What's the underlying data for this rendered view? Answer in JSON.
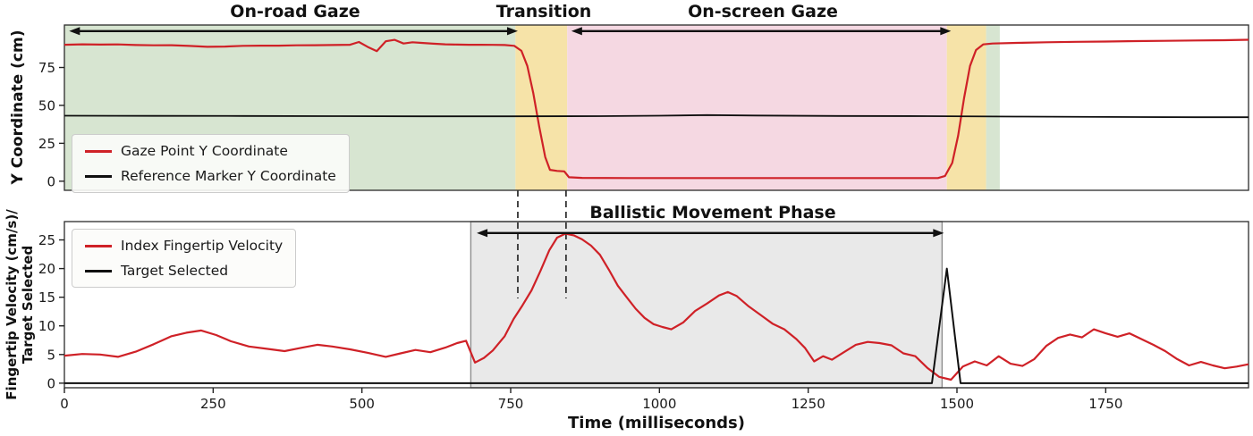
{
  "figure": {
    "background": "#ffffff"
  },
  "colors": {
    "red_line": "#cf2127",
    "black_line": "#0f0f0f",
    "green_region": "#d7e5d1",
    "yellow_region": "#f6e3a8",
    "pink_region": "#f5d8e2",
    "gray_region": "#e9e9e9"
  },
  "chart_data": [
    {
      "type": "line",
      "title": "",
      "ylabel": "Y Coordinate (cm)",
      "xlim": [
        0,
        1990
      ],
      "ylim": [
        -6,
        103
      ],
      "yticks": [
        0,
        25,
        50,
        75
      ],
      "grid": false,
      "legend_position": "center-left",
      "regions": [
        {
          "name": "on-road-green",
          "x0": 0,
          "x1": 758,
          "color": "#d7e5d1"
        },
        {
          "name": "transition-yellow-1",
          "x0": 758,
          "x1": 845,
          "color": "#f6e3a8"
        },
        {
          "name": "on-screen-pink",
          "x0": 845,
          "x1": 1483,
          "color": "#f5d8e2"
        },
        {
          "name": "transition-yellow-2",
          "x0": 1483,
          "x1": 1549,
          "color": "#f6e3a8"
        },
        {
          "name": "post-green",
          "x0": 1549,
          "x1": 1572,
          "color": "#d7e5d1"
        }
      ],
      "annotations": [
        {
          "label": "On-road Gaze",
          "arrow": [
            8,
            762
          ],
          "arrow_y": 99
        },
        {
          "label": "Transition",
          "arrow": null
        },
        {
          "label": "On-screen Gaze",
          "arrow": [
            852,
            1490
          ],
          "arrow_y": 99
        }
      ],
      "legend": {
        "items": [
          {
            "label": "Gaze Point Y Coordinate",
            "color": "#cf2127"
          },
          {
            "label": "Reference Marker Y Coordinate",
            "color": "#0f0f0f"
          }
        ]
      },
      "series": [
        {
          "name": "Gaze Point Y Coordinate",
          "color": "#cf2127",
          "width": 2.2,
          "points": [
            [
              0,
              90
            ],
            [
              30,
              90.3
            ],
            [
              60,
              90.1
            ],
            [
              90,
              90.2
            ],
            [
              120,
              89.8
            ],
            [
              150,
              89.6
            ],
            [
              180,
              89.7
            ],
            [
              210,
              89.2
            ],
            [
              240,
              88.6
            ],
            [
              270,
              88.8
            ],
            [
              300,
              89.3
            ],
            [
              330,
              89.4
            ],
            [
              360,
              89.4
            ],
            [
              390,
              89.6
            ],
            [
              420,
              89.7
            ],
            [
              450,
              89.8
            ],
            [
              480,
              90
            ],
            [
              495,
              91.8
            ],
            [
              510,
              88.5
            ],
            [
              525,
              85.8
            ],
            [
              540,
              92.3
            ],
            [
              555,
              93.2
            ],
            [
              570,
              90.8
            ],
            [
              585,
              91.6
            ],
            [
              600,
              91.2
            ],
            [
              620,
              90.7
            ],
            [
              640,
              90.3
            ],
            [
              660,
              90.1
            ],
            [
              680,
              90
            ],
            [
              700,
              90
            ],
            [
              720,
              89.9
            ],
            [
              740,
              89.8
            ],
            [
              756,
              89.3
            ],
            [
              768,
              86
            ],
            [
              778,
              76
            ],
            [
              788,
              58
            ],
            [
              798,
              36
            ],
            [
              808,
              16
            ],
            [
              816,
              7.5
            ],
            [
              828,
              6.8
            ],
            [
              840,
              6.5
            ],
            [
              848,
              2.6
            ],
            [
              870,
              2.2
            ],
            [
              950,
              2.1
            ],
            [
              1050,
              2.1
            ],
            [
              1150,
              2.1
            ],
            [
              1250,
              2.1
            ],
            [
              1350,
              2.1
            ],
            [
              1430,
              2.1
            ],
            [
              1468,
              2.1
            ],
            [
              1480,
              3.5
            ],
            [
              1492,
              12
            ],
            [
              1502,
              30
            ],
            [
              1512,
              55
            ],
            [
              1522,
              76
            ],
            [
              1532,
              86.5
            ],
            [
              1544,
              90.2
            ],
            [
              1560,
              90.8
            ],
            [
              1600,
              91.2
            ],
            [
              1650,
              91.6
            ],
            [
              1700,
              91.9
            ],
            [
              1750,
              92.1
            ],
            [
              1800,
              92.4
            ],
            [
              1850,
              92.6
            ],
            [
              1900,
              92.8
            ],
            [
              1950,
              93
            ],
            [
              1990,
              93.3
            ]
          ]
        },
        {
          "name": "Reference Marker Y Coordinate",
          "color": "#0f0f0f",
          "width": 1.8,
          "points": [
            [
              0,
              43.2
            ],
            [
              150,
              43.1
            ],
            [
              300,
              43
            ],
            [
              450,
              42.9
            ],
            [
              600,
              42.8
            ],
            [
              750,
              42.8
            ],
            [
              900,
              42.9
            ],
            [
              1000,
              43.2
            ],
            [
              1080,
              43.6
            ],
            [
              1160,
              43.3
            ],
            [
              1300,
              43
            ],
            [
              1450,
              42.9
            ],
            [
              1600,
              42.6
            ],
            [
              1750,
              42.4
            ],
            [
              1900,
              42.2
            ],
            [
              1990,
              42.2
            ]
          ]
        }
      ]
    },
    {
      "type": "line",
      "title": "",
      "ylabel_lines": [
        "Fingertip Velocity (cm/s)/",
        "Target Selected"
      ],
      "xlabel": "Time (milliseconds)",
      "xlim": [
        0,
        1990
      ],
      "ylim": [
        -0.8,
        28.2
      ],
      "yticks": [
        0,
        5,
        10,
        15,
        20,
        25
      ],
      "xticks": [
        0,
        250,
        500,
        750,
        1000,
        1250,
        1500,
        1750
      ],
      "grid": false,
      "legend_position": "top-left",
      "regions": [
        {
          "name": "ballistic-gray",
          "x0": 683,
          "x1": 1475,
          "color": "#e9e9e9",
          "border": "#8f8f8f"
        }
      ],
      "dashed_lines": [
        762,
        843
      ],
      "annotations": [
        {
          "label": "Ballistic Movement Phase",
          "arrow": [
            693,
            1478
          ],
          "arrow_y": 26.2
        }
      ],
      "legend": {
        "items": [
          {
            "label": "Index Fingertip Velocity",
            "color": "#cf2127"
          },
          {
            "label": "Target Selected",
            "color": "#0f0f0f"
          }
        ]
      },
      "series": [
        {
          "name": "Index Fingertip Velocity",
          "color": "#cf2127",
          "width": 2.2,
          "points": [
            [
              0,
              4.8
            ],
            [
              30,
              5.1
            ],
            [
              60,
              5.0
            ],
            [
              90,
              4.6
            ],
            [
              120,
              5.5
            ],
            [
              150,
              6.8
            ],
            [
              180,
              8.2
            ],
            [
              205,
              8.8
            ],
            [
              230,
              9.2
            ],
            [
              255,
              8.4
            ],
            [
              280,
              7.3
            ],
            [
              310,
              6.4
            ],
            [
              340,
              6.0
            ],
            [
              370,
              5.6
            ],
            [
              400,
              6.2
            ],
            [
              425,
              6.7
            ],
            [
              450,
              6.4
            ],
            [
              480,
              5.9
            ],
            [
              510,
              5.3
            ],
            [
              540,
              4.6
            ],
            [
              565,
              5.2
            ],
            [
              590,
              5.8
            ],
            [
              615,
              5.4
            ],
            [
              640,
              6.2
            ],
            [
              660,
              7.0
            ],
            [
              675,
              7.4
            ],
            [
              690,
              3.6
            ],
            [
              705,
              4.4
            ],
            [
              720,
              5.7
            ],
            [
              740,
              8.2
            ],
            [
              755,
              11.2
            ],
            [
              770,
              13.6
            ],
            [
              785,
              16.2
            ],
            [
              800,
              19.6
            ],
            [
              815,
              23.2
            ],
            [
              828,
              25.4
            ],
            [
              842,
              26.1
            ],
            [
              856,
              25.8
            ],
            [
              870,
              25.1
            ],
            [
              885,
              24.0
            ],
            [
              900,
              22.4
            ],
            [
              915,
              19.8
            ],
            [
              930,
              17.0
            ],
            [
              945,
              15.0
            ],
            [
              960,
              13.0
            ],
            [
              975,
              11.4
            ],
            [
              990,
              10.3
            ],
            [
              1005,
              9.8
            ],
            [
              1020,
              9.4
            ],
            [
              1040,
              10.6
            ],
            [
              1060,
              12.6
            ],
            [
              1080,
              13.9
            ],
            [
              1100,
              15.3
            ],
            [
              1115,
              15.9
            ],
            [
              1130,
              15.2
            ],
            [
              1150,
              13.4
            ],
            [
              1170,
              11.9
            ],
            [
              1190,
              10.4
            ],
            [
              1210,
              9.4
            ],
            [
              1230,
              7.7
            ],
            [
              1245,
              6.1
            ],
            [
              1260,
              3.8
            ],
            [
              1275,
              4.7
            ],
            [
              1290,
              4.1
            ],
            [
              1310,
              5.4
            ],
            [
              1330,
              6.7
            ],
            [
              1350,
              7.2
            ],
            [
              1370,
              7.0
            ],
            [
              1390,
              6.6
            ],
            [
              1410,
              5.2
            ],
            [
              1430,
              4.7
            ],
            [
              1450,
              2.7
            ],
            [
              1470,
              1.1
            ],
            [
              1490,
              0.6
            ],
            [
              1510,
              2.9
            ],
            [
              1530,
              3.8
            ],
            [
              1550,
              3.1
            ],
            [
              1570,
              4.7
            ],
            [
              1590,
              3.4
            ],
            [
              1610,
              3.0
            ],
            [
              1630,
              4.2
            ],
            [
              1650,
              6.5
            ],
            [
              1670,
              7.9
            ],
            [
              1690,
              8.5
            ],
            [
              1710,
              8.0
            ],
            [
              1730,
              9.4
            ],
            [
              1750,
              8.7
            ],
            [
              1770,
              8.1
            ],
            [
              1790,
              8.7
            ],
            [
              1810,
              7.7
            ],
            [
              1830,
              6.7
            ],
            [
              1850,
              5.6
            ],
            [
              1870,
              4.2
            ],
            [
              1890,
              3.1
            ],
            [
              1910,
              3.7
            ],
            [
              1930,
              3.1
            ],
            [
              1950,
              2.6
            ],
            [
              1970,
              2.9
            ],
            [
              1990,
              3.3
            ]
          ]
        },
        {
          "name": "Target Selected",
          "color": "#0f0f0f",
          "width": 2.0,
          "points": [
            [
              0,
              0
            ],
            [
              1458,
              0
            ],
            [
              1483,
              20
            ],
            [
              1506,
              0
            ],
            [
              1990,
              0
            ]
          ]
        }
      ]
    }
  ]
}
